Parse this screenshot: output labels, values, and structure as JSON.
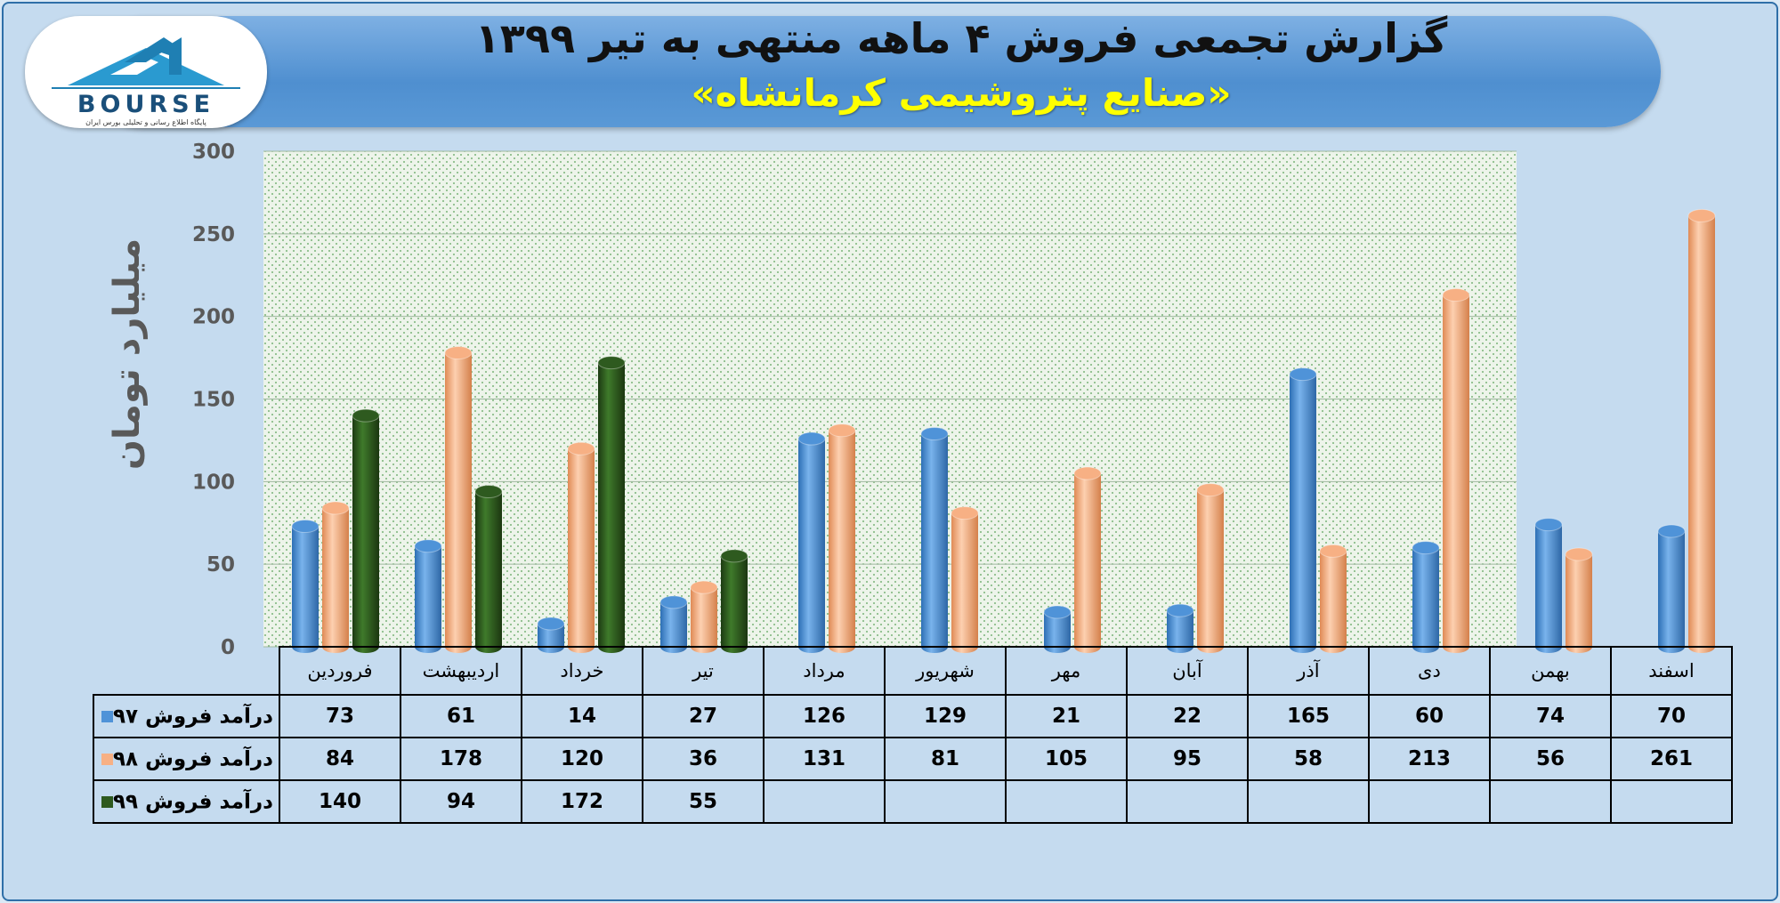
{
  "title": "گزارش تجمعی فروش ۴ ماهه منتهی به تیر ۱۳۹۹",
  "subtitle": "«صنایع پتروشیمی کرمانشاه»",
  "logo": {
    "wordmark": "BOURSE",
    "tagline": "پایگاه اطلاع رسانی و تحلیلی بورس ایران"
  },
  "chart_data": {
    "type": "bar",
    "ylabel": "میلیارد تومان",
    "ylim": [
      0,
      300
    ],
    "yticks": [
      0,
      50,
      100,
      150,
      200,
      250,
      300
    ],
    "categories": [
      "فروردین",
      "اردیبهشت",
      "خرداد",
      "تیر",
      "مرداد",
      "شهریور",
      "مهر",
      "آبان",
      "آذر",
      "دی",
      "بهمن",
      "اسفند"
    ],
    "series": [
      {
        "name": "درآمد فروش ۹۷",
        "color": "#4f93d8",
        "values": [
          73,
          61,
          14,
          27,
          126,
          129,
          21,
          22,
          165,
          60,
          74,
          70
        ]
      },
      {
        "name": "درآمد فروش ۹۸",
        "color": "#f7b084",
        "values": [
          84,
          178,
          120,
          36,
          131,
          81,
          105,
          95,
          58,
          213,
          56,
          261
        ]
      },
      {
        "name": "درآمد فروش ۹۹",
        "color": "#2e5a1f",
        "values": [
          140,
          94,
          172,
          55,
          null,
          null,
          null,
          null,
          null,
          null,
          null,
          null
        ]
      }
    ],
    "grid": true,
    "legend": "data-table"
  }
}
